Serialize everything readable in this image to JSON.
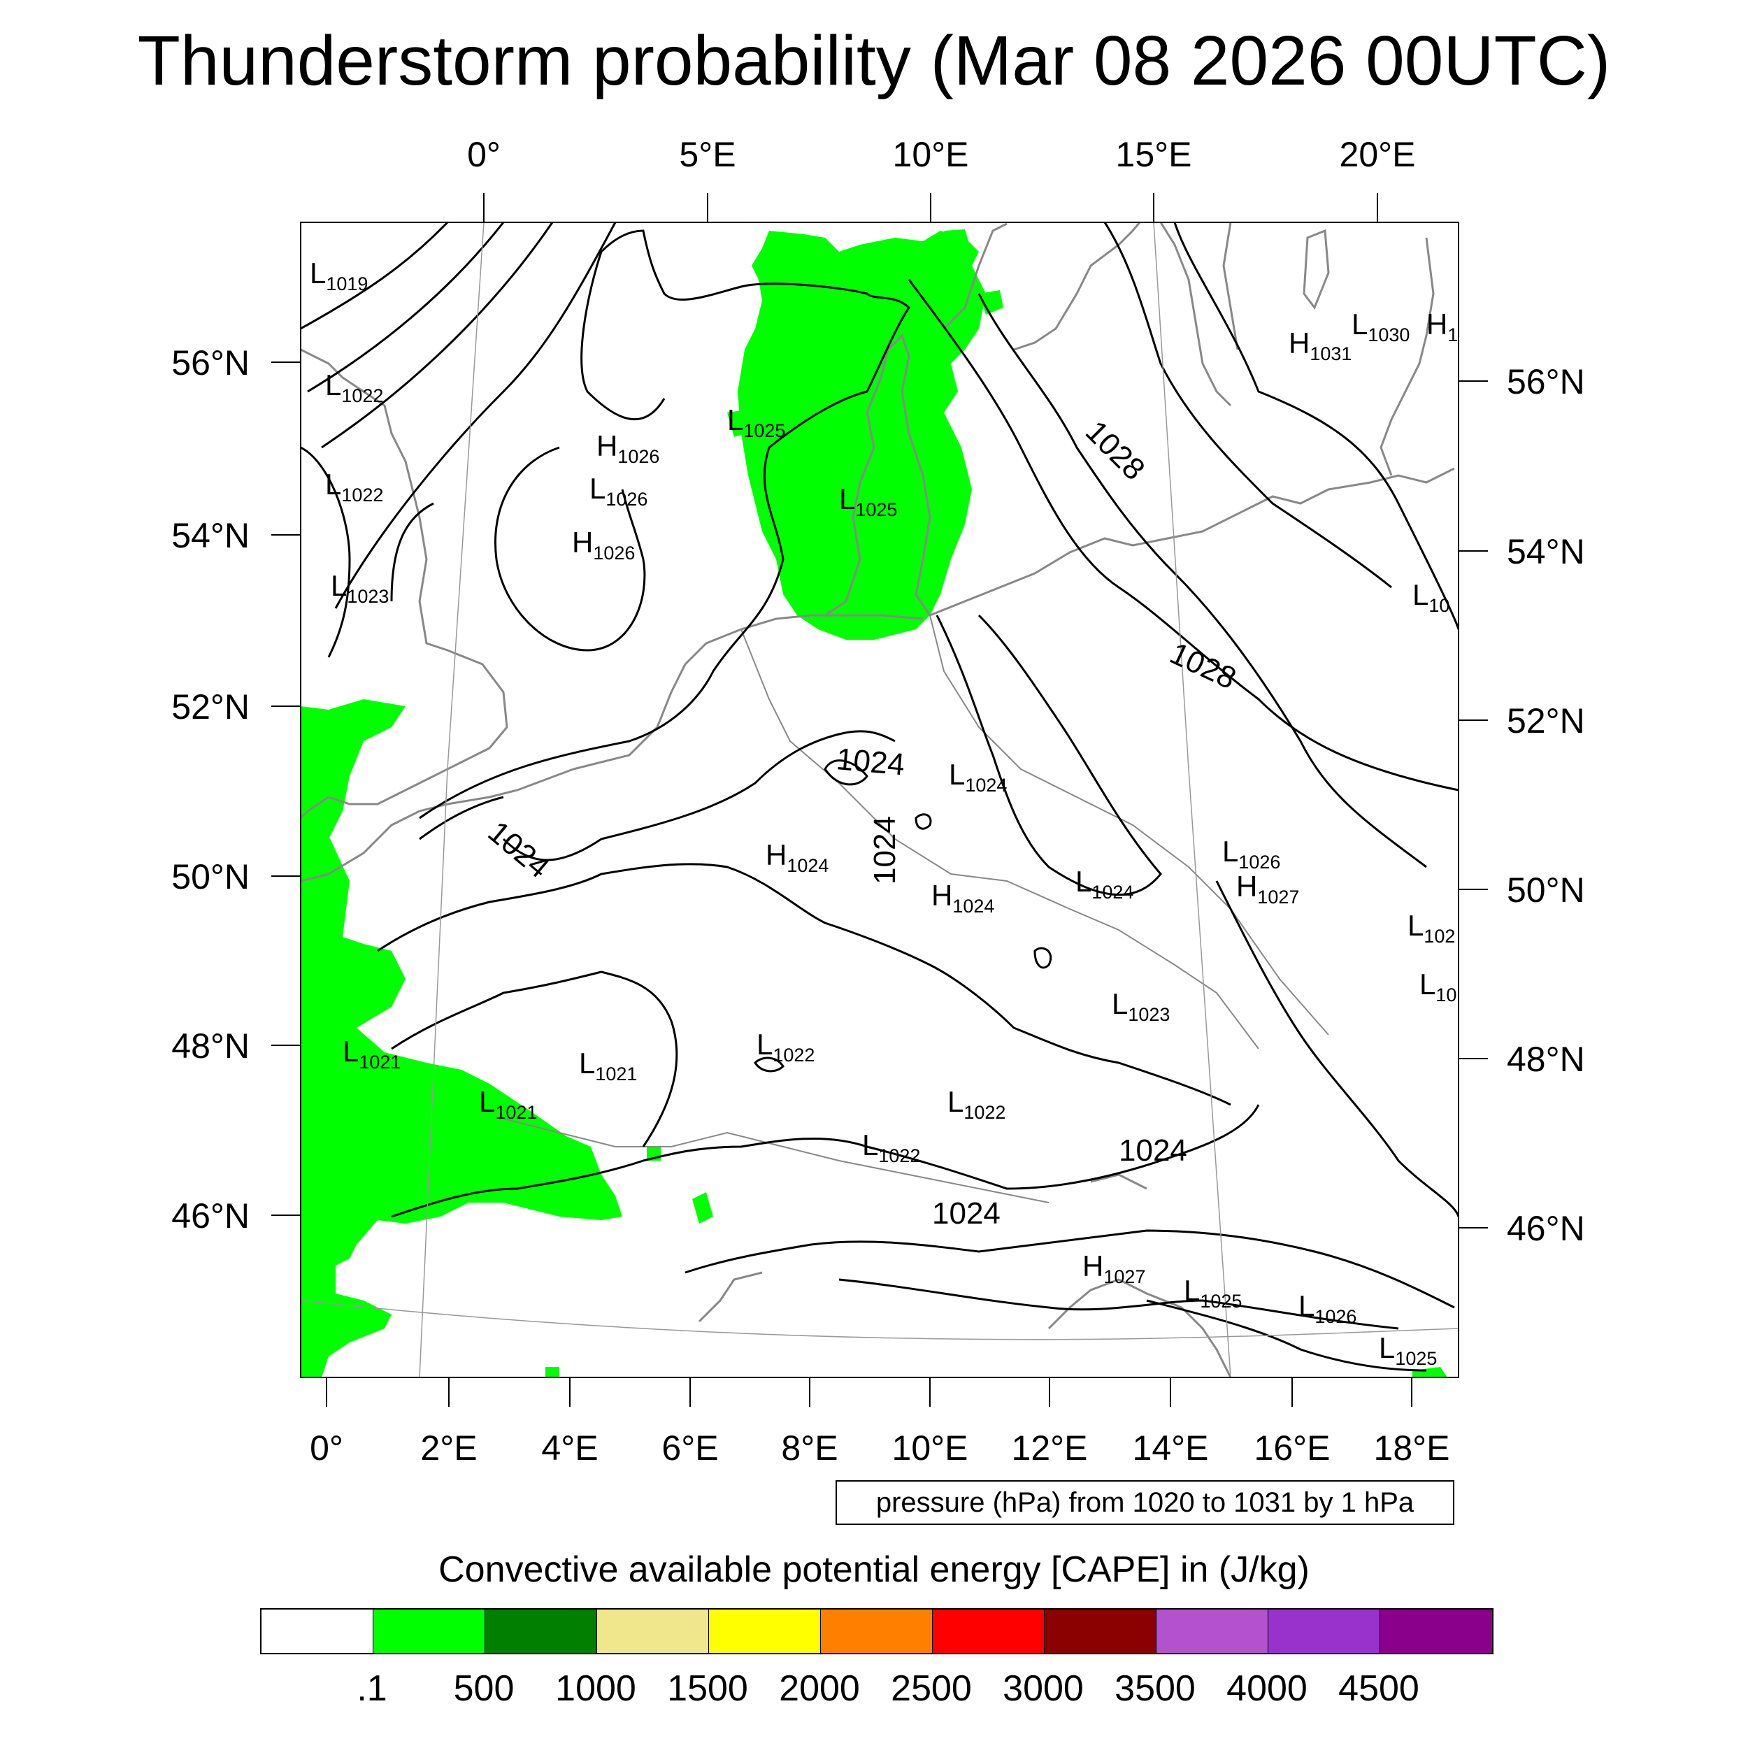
{
  "title": "Thunderstorm probability (Mar 08 2026 00UTC)",
  "top_axis_labels": [
    "0°",
    "5°E",
    "10°E",
    "15°E",
    "20°E"
  ],
  "bottom_axis_labels": [
    "0°",
    "2°E",
    "4°E",
    "6°E",
    "8°E",
    "10°E",
    "12°E",
    "14°E",
    "16°E",
    "18°E"
  ],
  "left_axis_labels": [
    "56°N",
    "54°N",
    "52°N",
    "50°N",
    "48°N",
    "46°N"
  ],
  "right_axis_labels": [
    "56°N",
    "54°N",
    "52°N",
    "50°N",
    "48°N",
    "46°N"
  ],
  "pressure_centers": [
    {
      "type": "L",
      "value": "1019"
    },
    {
      "type": "L",
      "value": "1022"
    },
    {
      "type": "L",
      "value": "1022"
    },
    {
      "type": "L",
      "value": "1023"
    },
    {
      "type": "H",
      "value": "1026"
    },
    {
      "type": "L",
      "value": "1026"
    },
    {
      "type": "H",
      "value": "1026"
    },
    {
      "type": "L",
      "value": "1025"
    },
    {
      "type": "L",
      "value": "1025"
    },
    {
      "type": "H",
      "value": "1031"
    },
    {
      "type": "L",
      "value": "1030"
    },
    {
      "type": "H",
      "value": "1"
    },
    {
      "type": "L",
      "value": "1024"
    },
    {
      "type": "H",
      "value": "1024"
    },
    {
      "type": "H",
      "value": "1024"
    },
    {
      "type": "L",
      "value": "1024"
    },
    {
      "type": "L",
      "value": "1026"
    },
    {
      "type": "H",
      "value": "1027"
    },
    {
      "type": "L",
      "value": "1023"
    },
    {
      "type": "L",
      "value": "1021"
    },
    {
      "type": "L",
      "value": "1021"
    },
    {
      "type": "L",
      "value": "1021"
    },
    {
      "type": "L",
      "value": "1022"
    },
    {
      "type": "L",
      "value": "1022"
    },
    {
      "type": "L",
      "value": "1022"
    },
    {
      "type": "H",
      "value": "1027"
    },
    {
      "type": "L",
      "value": "1025"
    },
    {
      "type": "L",
      "value": "1026"
    },
    {
      "type": "L",
      "value": "1025"
    },
    {
      "type": "L",
      "value": "102"
    },
    {
      "type": "L",
      "value": "10"
    },
    {
      "type": "L",
      "value": "10"
    }
  ],
  "contour_labels": [
    "1028",
    "1028",
    "1024",
    "1024",
    "1024",
    "1024",
    "1024"
  ],
  "contour_info": "pressure (hPa) from 1020 to 1031 by 1 hPa",
  "legend": {
    "title": "Convective available potential energy [CAPE] in (J/kg)",
    "colors": [
      "#ffffff",
      "#00ff00",
      "#007f00",
      "#f0e68c",
      "#ffff00",
      "#ff8000",
      "#ff0000",
      "#8b0000",
      "#b452cd",
      "#9932cc",
      "#8b008b"
    ],
    "labels": [
      ".1",
      "500",
      "1000",
      "1500",
      "2000",
      "2500",
      "3000",
      "3500",
      "4000",
      "4500"
    ]
  }
}
